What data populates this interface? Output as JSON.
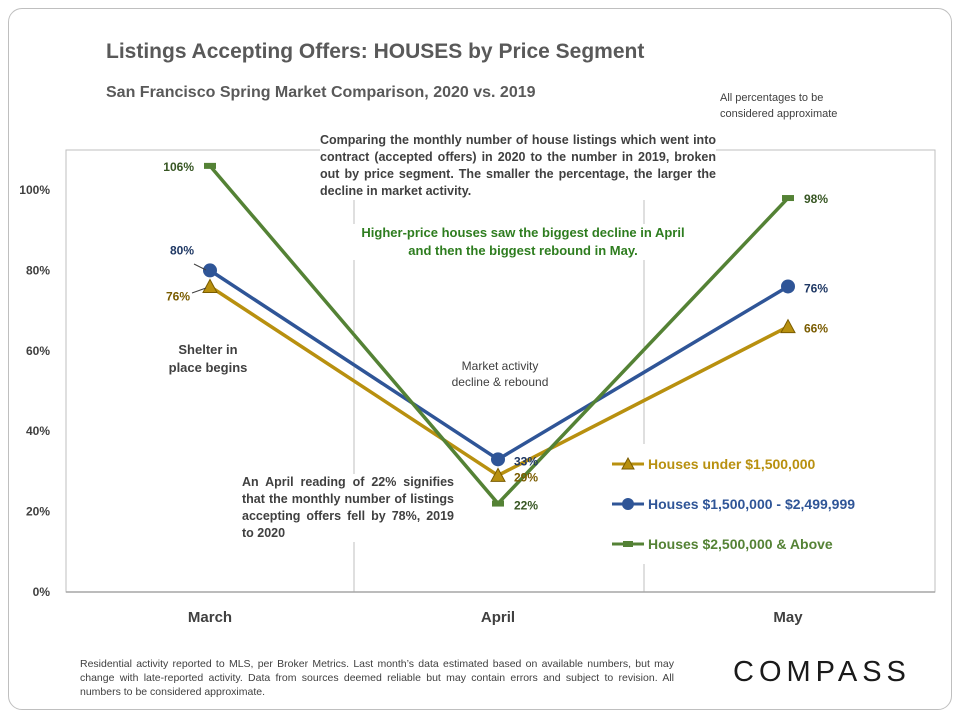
{
  "title": "Listings Accepting Offers: HOUSES by Price Segment",
  "subtitle": "San Francisco Spring Market Comparison,  2020 vs. 2019",
  "top_note": "All percentages to be considered approximate",
  "description": "Comparing the monthly number of house listings which went into contract (accepted offers) in 2020 to the number in 2019, broken out by price segment. The smaller the percentage, the larger the decline in market activity.",
  "highlight_line1": "Higher-price houses saw the biggest decline in April",
  "highlight_line2": "and then the biggest rebound in May.",
  "shelter_line1": "Shelter in",
  "shelter_line2": "place  begins",
  "market_line1": "Market activity",
  "market_line2": "decline & rebound",
  "april_note": "An April reading of 22% signifies that the monthly number of listings accepting offers fell by 78%, 2019 to 2020",
  "footer": "Residential activity reported to MLS, per Broker Metrics. Last month’s data estimated based on available numbers, but may change with late-reported activity. Data from sources deemed reliable but may contain errors and subject to revision. All numbers to be considered approximate.",
  "logo": "COMPASS",
  "chart_data": {
    "type": "line",
    "categories": [
      "March",
      "April",
      "May"
    ],
    "ylim": [
      0,
      110
    ],
    "yticks": [
      0,
      20,
      40,
      60,
      80,
      100
    ],
    "ytick_labels": [
      "0%",
      "20%",
      "40%",
      "60%",
      "80%",
      "100%"
    ],
    "series": [
      {
        "name": "Houses under $1,500,000",
        "values": [
          76,
          29,
          66
        ],
        "labels": [
          "76%",
          "29%",
          "66%"
        ],
        "color": "#b8900f",
        "label_color": "#7a5c00",
        "marker": "triangle"
      },
      {
        "name": "Houses $1,500,000 - $2,499,999",
        "values": [
          80,
          33,
          76
        ],
        "labels": [
          "80%",
          "33%",
          "76%"
        ],
        "color": "#2f5597",
        "label_color": "#1f3864",
        "marker": "circle"
      },
      {
        "name": "Houses $2,500,000 & Above",
        "values": [
          106,
          22,
          98
        ],
        "labels": [
          "106%",
          "22%",
          "98%"
        ],
        "color": "#548235",
        "label_color": "#375623",
        "marker": "dash"
      }
    ]
  }
}
